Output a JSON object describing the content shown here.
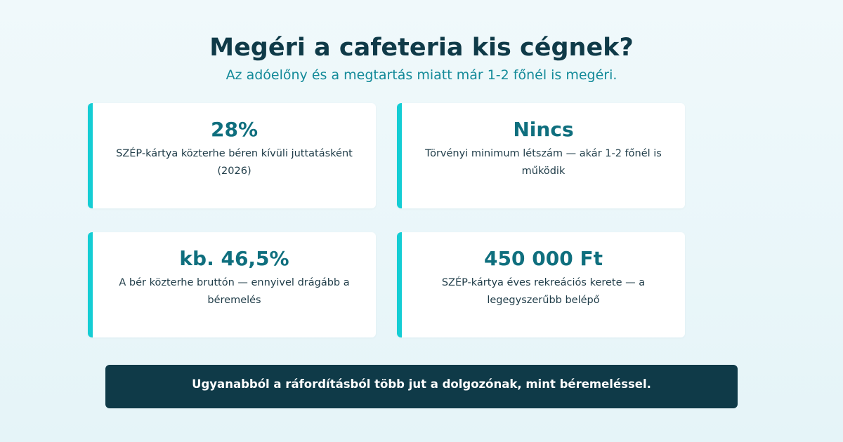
{
  "header": {
    "title": "Megéri a cafeteria kis cégnek?",
    "subtitle": "Az adóelőny és a megtartás miatt már 1-2 főnél is megéri."
  },
  "cards": [
    {
      "value": "28%",
      "description": "SZÉP-kártya közterhe béren kívüli juttatásként (2026)"
    },
    {
      "value": "Nincs",
      "description": "Törvényi minimum létszám — akár 1-2 főnél is működik"
    },
    {
      "value": "kb. 46,5%",
      "description": "A bér közterhe bruttón — ennyivel drágább a béremelés"
    },
    {
      "value": "450 000 Ft",
      "description": "SZÉP-kártya éves rekreációs kerete — a legegyszerűbb belépő"
    }
  ],
  "banner": {
    "text": "Ugyanabból a ráfordításból több jut a dolgozónak, mint béremeléssel."
  },
  "colors": {
    "title": "#0f3a48",
    "accent": "#14cdd4",
    "value": "#0f6f7e",
    "subtitle": "#138a99",
    "banner_bg": "#0f3a48"
  }
}
